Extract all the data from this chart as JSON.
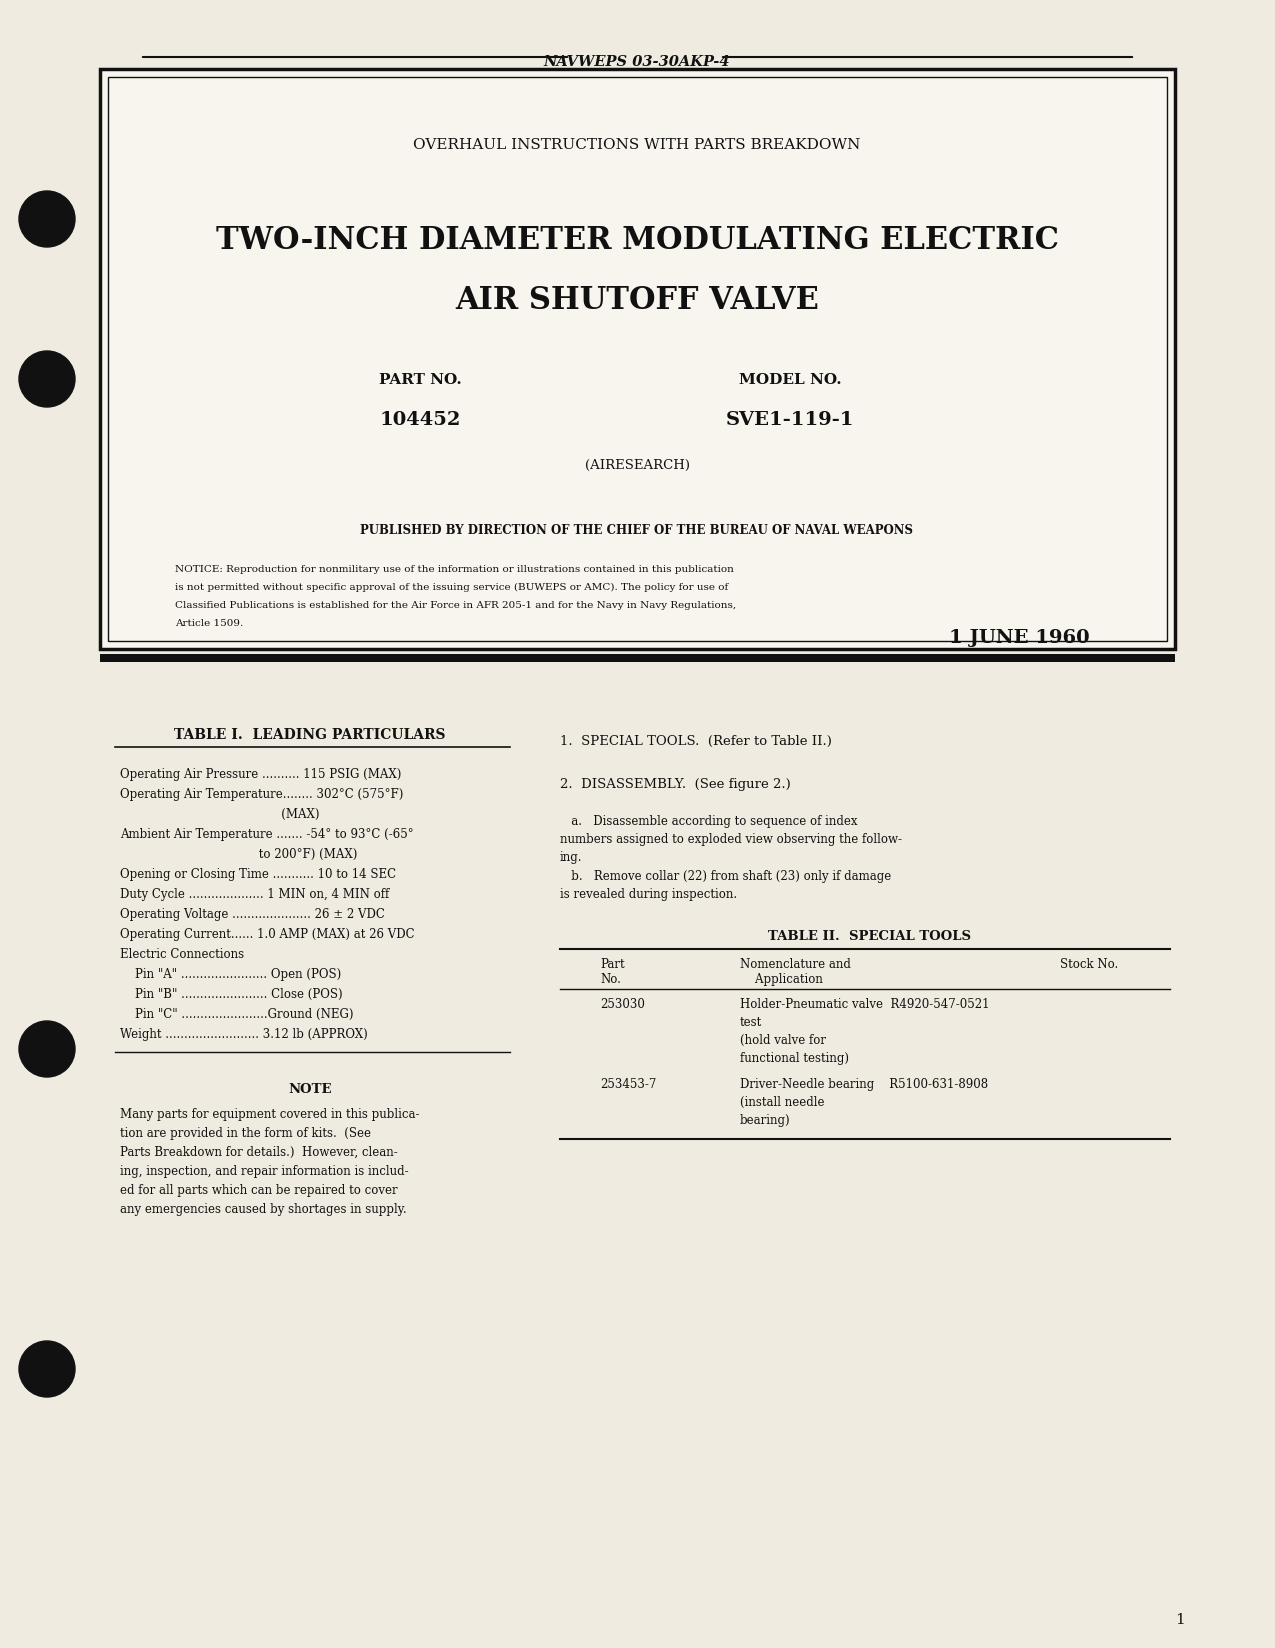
{
  "bg_color": "#f5f0e8",
  "page_bg": "#f0ebe0",
  "box_bg": "#f8f5ee",
  "header_text": "NAVWEPS 03-30AKP-4",
  "subtitle": "OVERHAUL INSTRUCTIONS WITH PARTS BREAKDOWN",
  "main_title_line1": "TWO-INCH DIAMETER MODULATING ELECTRIC",
  "main_title_line2": "AIR SHUTOFF VALVE",
  "part_no_label": "PART NO.",
  "part_no_value": "104452",
  "model_no_label": "MODEL NO.",
  "model_no_value": "SVE1-119-1",
  "manufacturer": "(AIRESEARCH)",
  "published_by": "PUBLISHED BY DIRECTION OF THE CHIEF OF THE BUREAU OF NAVAL WEAPONS",
  "notice_text": "NOTICE: Reproduction for nonmilitary use of the information or illustrations contained in this publication\nis not permitted without specific approval of the issuing service (BUWEPS or AMC). The policy for use of\nClassified Publications is established for the Air Force in AFR 205-1 and for the Navy in Navy Regulations,\nArticle 1509.",
  "date": "1 JUNE 1960",
  "table1_title": "TABLE I.  LEADING PARTICULARS",
  "table1_rows": [
    "Operating Air Pressure .......... 115 PSIG (MAX)",
    "Operating Air Temperature........ 302°C (575°F)",
    "                                           (MAX)",
    "Ambient Air Temperature ....... -54° to 93°C (-65°",
    "                                     to 200°F) (MAX)",
    "Opening or Closing Time ........... 10 to 14 SEC",
    "Duty Cycle .................... 1 MIN on, 4 MIN off",
    "Operating Voltage ..................... 26 ± 2 VDC",
    "Operating Current...... 1.0 AMP (MAX) at 26 VDC",
    "Electric Connections",
    "    Pin \"A\" ....................... Open (POS)",
    "    Pin \"B\" ....................... Close (POS)",
    "    Pin \"C\" .......................Ground (NEG)",
    "Weight ......................... 3.12 lb (APPROX)"
  ],
  "note_title": "NOTE",
  "note_text": "Many parts for equipment covered in this publica-\ntion are provided in the form of kits.  (See\nParts Breakdown for details.)  However, clean-\ning, inspection, and repair information is includ-\ned for all parts which can be repaired to cover\nany emergencies caused by shortages in supply.",
  "section1_title": "1.  SPECIAL TOOLS.  (Refer to Table II.)",
  "section2_title": "2.  DISASSEMBLY.  (See figure 2.)",
  "section2a_text": "   a.   Disassemble according to sequence of index\nnumbers assigned to exploded view observing the follow-\ning.",
  "section2b_text": "   b.   Remove collar (22) from shaft (23) only if damage\nis revealed during inspection.",
  "table2_title": "TABLE II.  SPECIAL TOOLS",
  "table2_col1": "Part\nNo.",
  "table2_col2": "Nomenclature and\n    Application",
  "table2_col3": "Stock No.",
  "table2_row1_part": "253030",
  "table2_row1_nom": "Holder-Pneumatic valve  R4920-547-0521\ntest\n(hold valve for\nfunctional testing)",
  "table2_row2_part": "253453-7",
  "table2_row2_nom": "Driver-Needle bearing    R5100-631-8908\n(install needle\nbearing)",
  "page_number": "1",
  "text_color": "#1a1a1a",
  "dark_color": "#111111"
}
